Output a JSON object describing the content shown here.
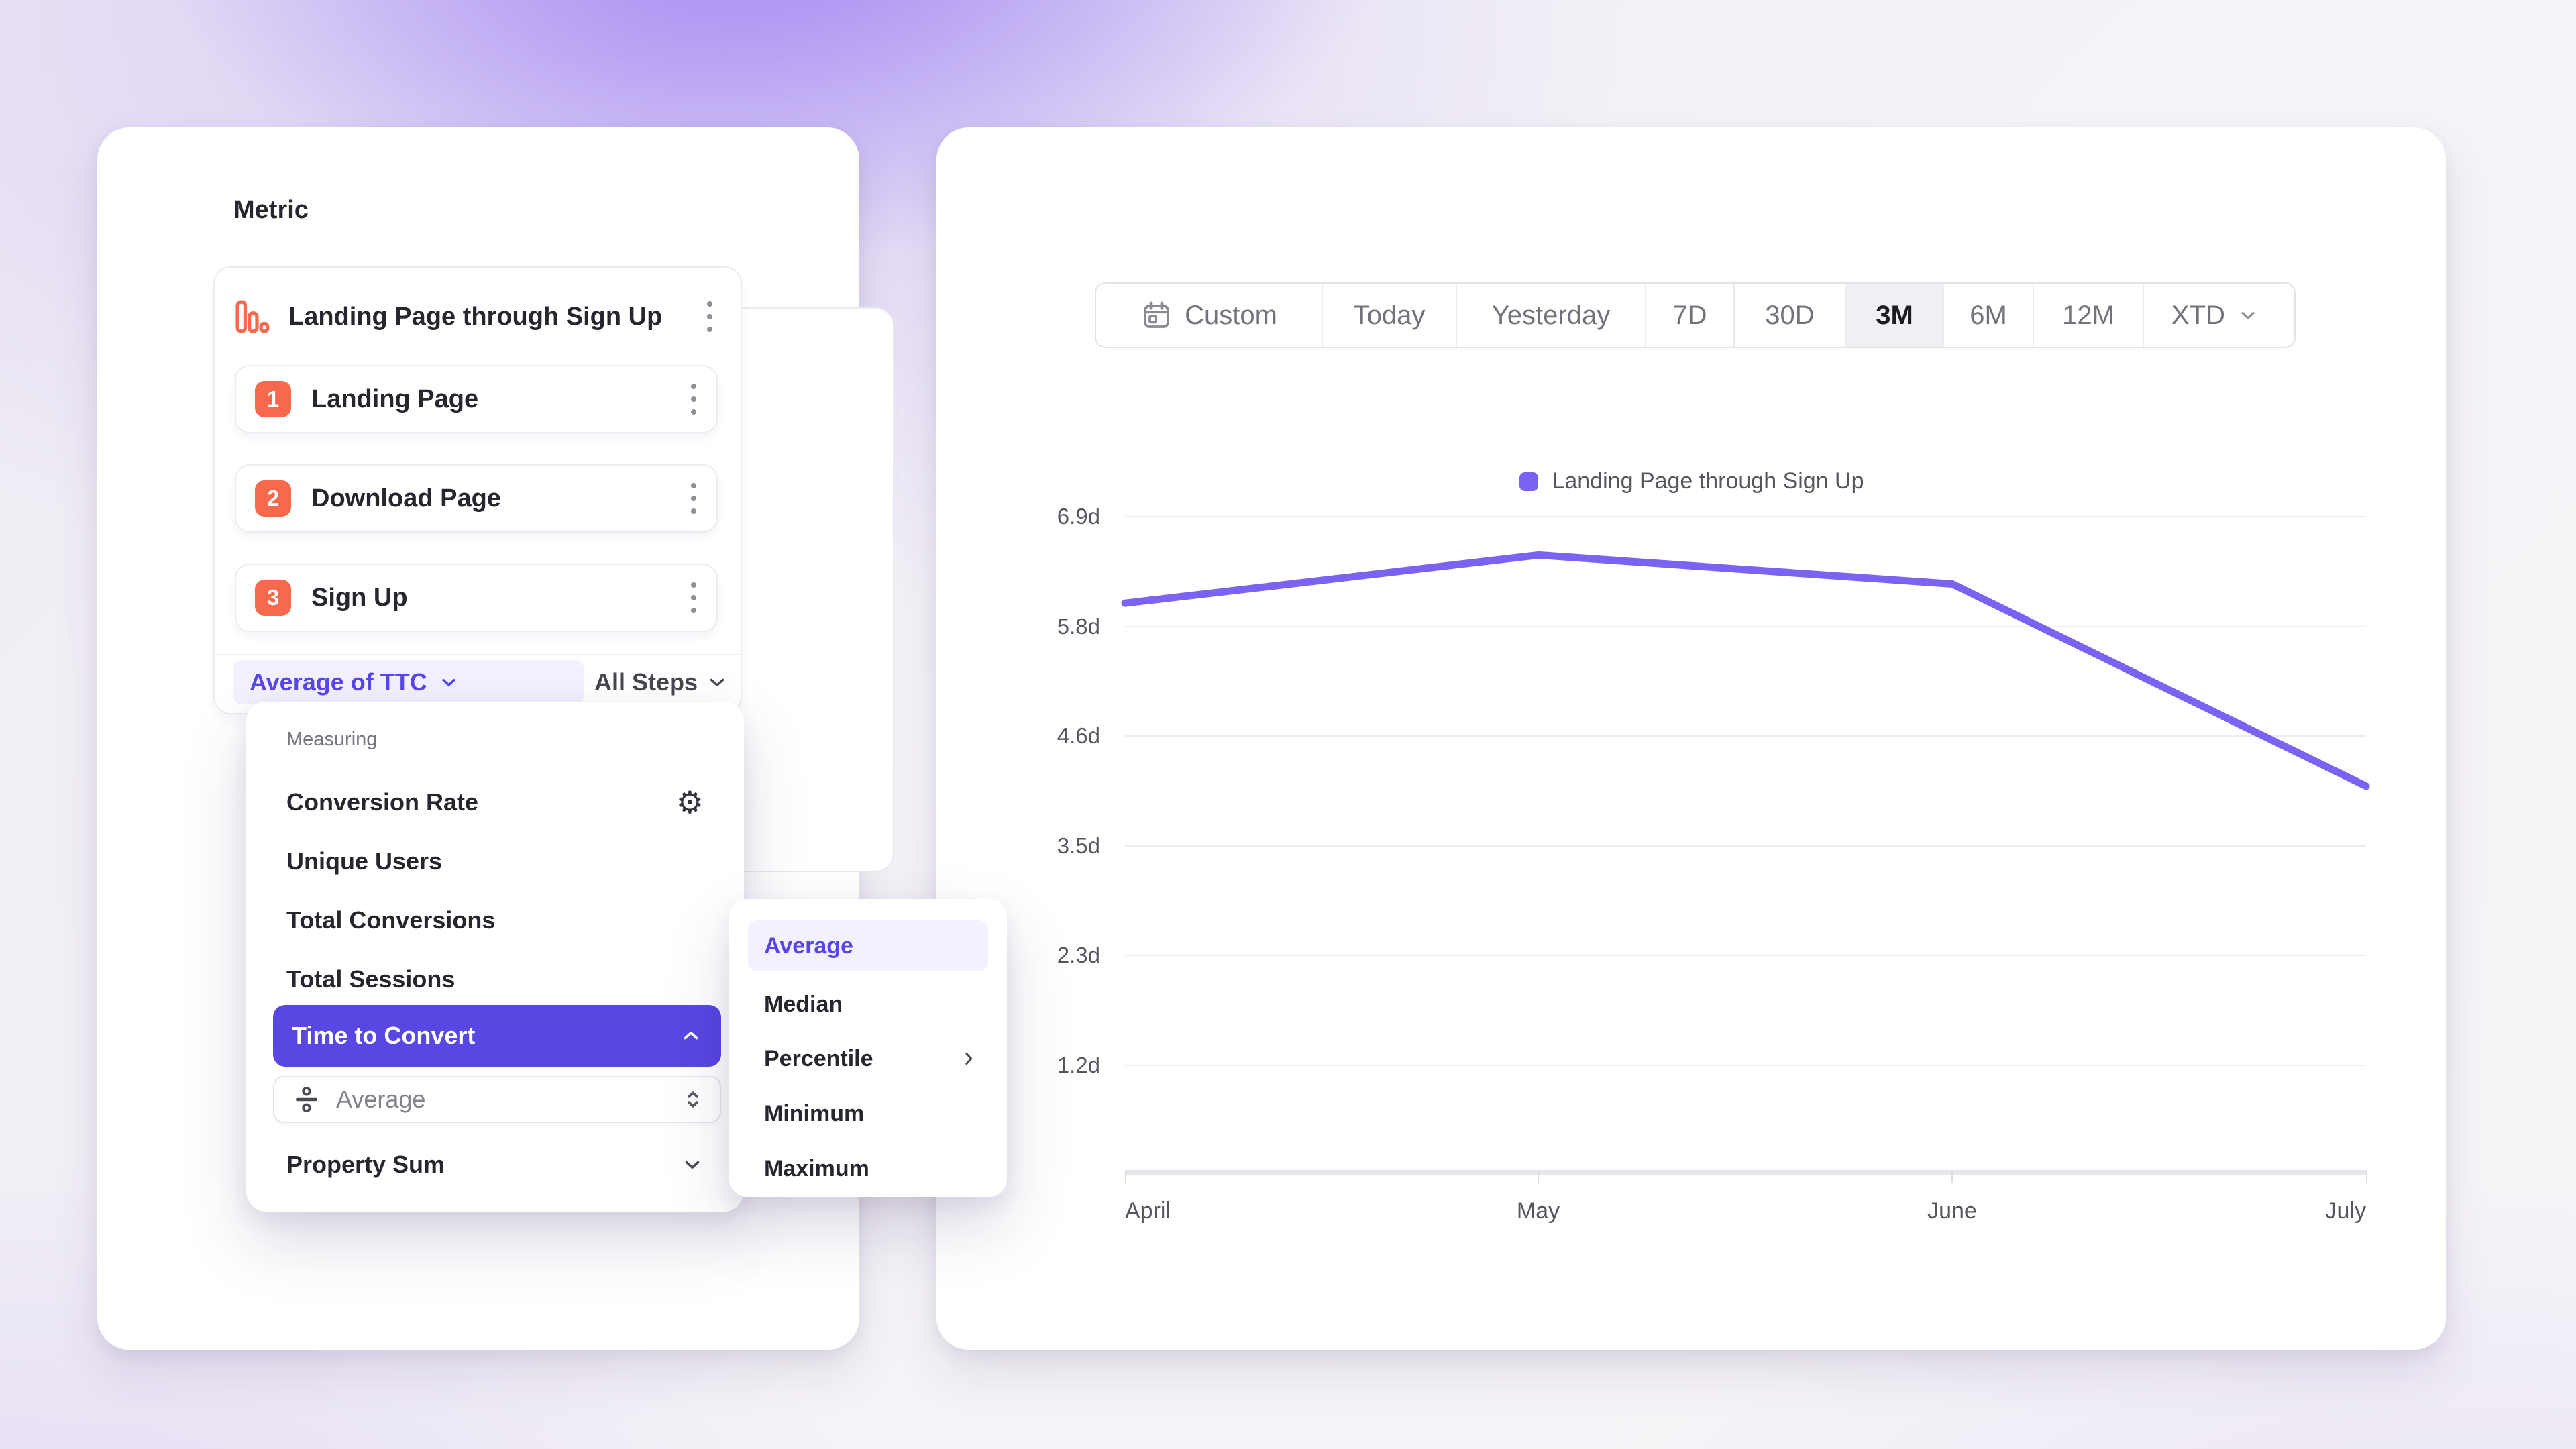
{
  "colors": {
    "accent_purple": "#5847E2",
    "accent_purple_text": "#5746EC",
    "line_purple": "#7A63F1",
    "step_badge_orange": "#F7694D",
    "selected_item_bg": "#F3F1FD"
  },
  "metric_panel": {
    "title": "Metric",
    "funnel": {
      "name": "Landing Page through Sign Up",
      "steps": [
        {
          "number": "1",
          "label": "Landing Page"
        },
        {
          "number": "2",
          "label": "Download Page"
        },
        {
          "number": "3",
          "label": "Sign Up"
        }
      ],
      "measurement": {
        "label": "Average of TTC"
      },
      "scope": {
        "label": "All Steps"
      }
    }
  },
  "measuring_menu": {
    "section_label": "Measuring",
    "items": [
      {
        "label": "Conversion Rate"
      },
      {
        "label": "Unique Users"
      },
      {
        "label": "Total Conversions"
      },
      {
        "label": "Total Sessions"
      },
      {
        "label": "Time to Convert",
        "selected": true
      },
      {
        "label": "Property Sum"
      }
    ],
    "ttc_aggregation": {
      "label": "Average"
    }
  },
  "aggregation_menu": {
    "items": [
      {
        "label": "Average",
        "selected": true
      },
      {
        "label": "Median"
      },
      {
        "label": "Percentile",
        "has_submenu": true
      },
      {
        "label": "Minimum"
      },
      {
        "label": "Maximum"
      }
    ]
  },
  "date_range_toolbar": {
    "items": [
      {
        "label": "Custom",
        "icon": "calendar-icon"
      },
      {
        "label": "Today"
      },
      {
        "label": "Yesterday"
      },
      {
        "label": "7D"
      },
      {
        "label": "30D"
      },
      {
        "label": "3M",
        "selected": true
      },
      {
        "label": "6M"
      },
      {
        "label": "12M"
      },
      {
        "label": "XTD",
        "has_dropdown": true
      }
    ]
  },
  "chart_data": {
    "type": "line",
    "legend": [
      {
        "label": "Landing Page through Sign Up",
        "color": "#7A63F1"
      }
    ],
    "legend_position": "top-center",
    "x": [
      "April",
      "May",
      "June",
      "July"
    ],
    "series": [
      {
        "name": "Landing Page through Sign Up",
        "color": "#7A63F1",
        "values_days": [
          6.0,
          6.5,
          6.2,
          4.1
        ]
      }
    ],
    "y_tick_labels": [
      "6.9d",
      "5.8d",
      "4.6d",
      "3.5d",
      "2.3d",
      "1.2d"
    ],
    "y_ticks_days": [
      6.9,
      5.8,
      4.6,
      3.5,
      2.3,
      1.2
    ],
    "ylim_days": [
      1.2,
      6.9
    ],
    "unit": "days",
    "grid": "horizontal"
  }
}
